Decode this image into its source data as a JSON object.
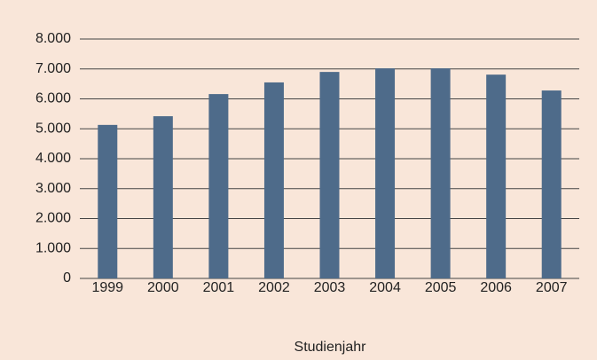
{
  "chart_data": {
    "type": "bar",
    "x_label": "Studienjahr",
    "categories": [
      "1999",
      "2000",
      "2001",
      "2002",
      "2003",
      "2004",
      "2005",
      "2006",
      "2007"
    ],
    "values": [
      5130,
      5420,
      6160,
      6550,
      6900,
      7020,
      7020,
      6810,
      6280
    ],
    "color": "#4e6b8a",
    "ylim": [
      0,
      8000
    ],
    "yticks": [
      0,
      {
        "value": 1000,
        "label": "1.000"
      },
      {
        "value": 2000,
        "label": "2.000"
      },
      {
        "value": 3000,
        "label": "3.000"
      },
      {
        "value": 4000,
        "label": "4.000"
      },
      {
        "value": 5000,
        "label": "5.000"
      },
      {
        "value": 6000,
        "label": "6.000"
      },
      {
        "value": 7000,
        "label": "7.000"
      },
      {
        "value": 8000,
        "label": "8.000"
      }
    ],
    "grid": true
  }
}
